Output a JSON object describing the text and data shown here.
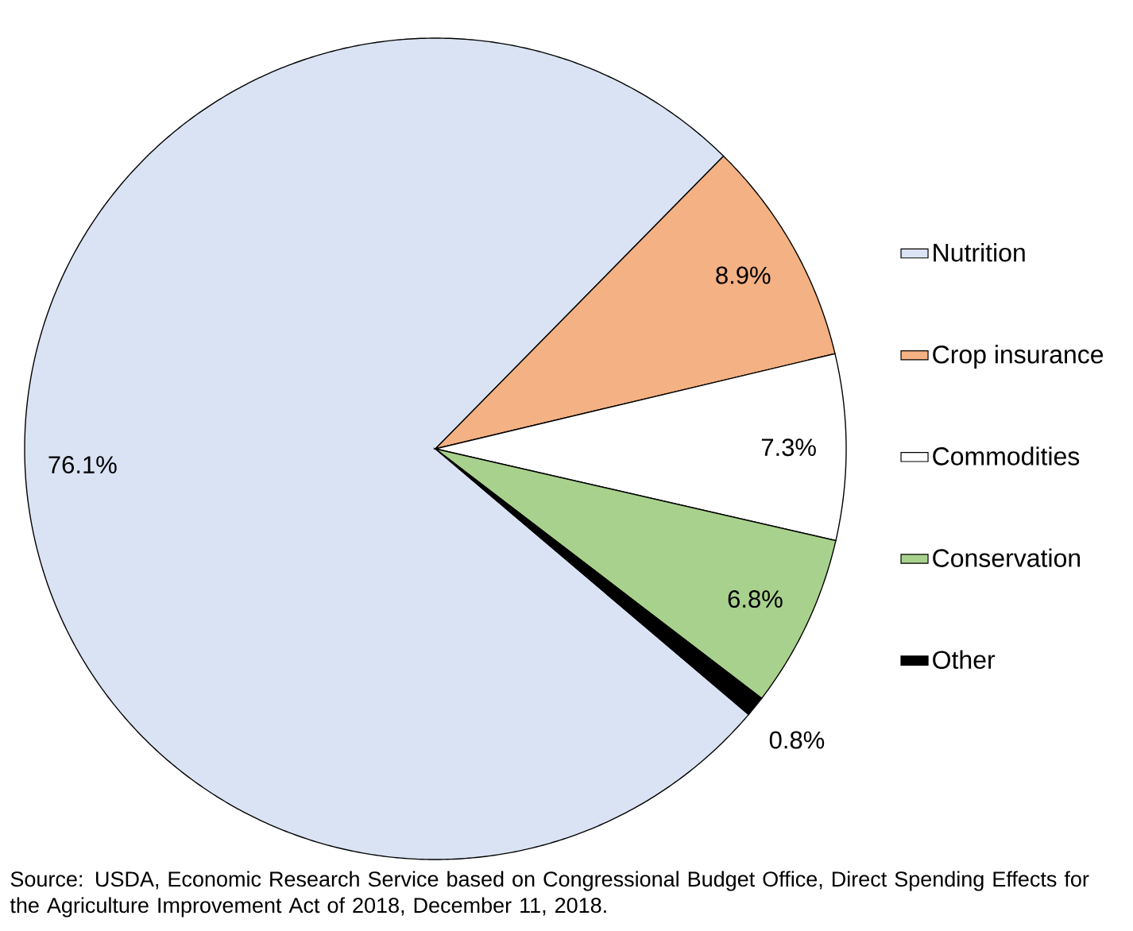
{
  "chart_data": {
    "type": "pie",
    "categories": [
      "Nutrition",
      "Crop insurance",
      "Commodities",
      "Conservation",
      "Other"
    ],
    "values": [
      76.1,
      8.9,
      7.3,
      6.8,
      0.8
    ],
    "colors": [
      "#dae3f3",
      "#f4b183",
      "#ffffff",
      "#a9d18e",
      "#000000"
    ],
    "value_labels": [
      "76.1%",
      "8.9%",
      "7.3%",
      "6.8%",
      "0.8%"
    ],
    "legend": "right",
    "annotations": [
      "Source: USDA, Economic Research Service based on Congressional Budget Office, Direct Spending Effects for the Agriculture Improvement Act of 2018, December 11, 2018."
    ]
  }
}
